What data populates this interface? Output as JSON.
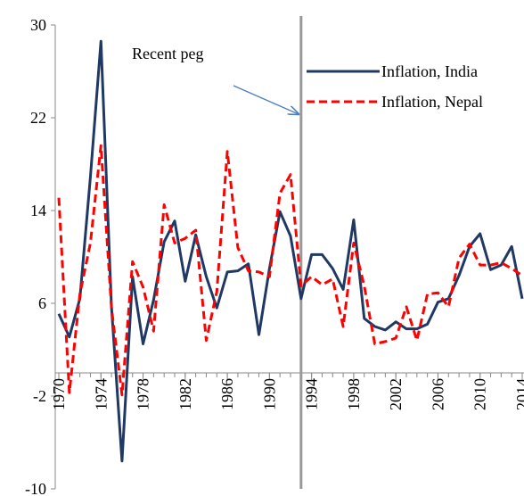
{
  "chart_data": {
    "type": "line",
    "annotation": "Recent peg",
    "peg_year": 1993,
    "x": [
      1970,
      1971,
      1972,
      1973,
      1974,
      1975,
      1976,
      1977,
      1978,
      1979,
      1980,
      1981,
      1982,
      1983,
      1984,
      1985,
      1986,
      1987,
      1988,
      1989,
      1990,
      1991,
      1992,
      1993,
      1994,
      1995,
      1996,
      1997,
      1998,
      1999,
      2000,
      2001,
      2002,
      2003,
      2004,
      2005,
      2006,
      2007,
      2008,
      2009,
      2010,
      2011,
      2012,
      2013,
      2014
    ],
    "series": [
      {
        "name": "Inflation, India",
        "color": "#1f3864",
        "dashed": false,
        "values": [
          5.1,
          3.1,
          6.4,
          16.9,
          28.6,
          5.7,
          -7.6,
          8.3,
          2.5,
          6.3,
          11.3,
          13.1,
          7.9,
          11.9,
          8.3,
          5.6,
          8.7,
          8.8,
          9.4,
          3.3,
          9.0,
          13.9,
          11.8,
          6.4,
          10.2,
          10.2,
          9.0,
          7.2,
          13.2,
          4.7,
          4.0,
          3.7,
          4.4,
          3.8,
          3.8,
          4.2,
          6.1,
          6.4,
          8.4,
          10.9,
          12.0,
          8.9,
          9.3,
          10.9,
          6.4
        ]
      },
      {
        "name": "Inflation, Nepal",
        "color": "#ff0000",
        "dashed": true,
        "values": [
          15.1,
          -1.7,
          6.8,
          11.2,
          19.6,
          5.6,
          -1.9,
          9.6,
          7.4,
          3.6,
          14.5,
          11.2,
          11.6,
          12.3,
          2.8,
          7.0,
          19.1,
          10.8,
          8.8,
          8.7,
          8.3,
          15.5,
          17.1,
          7.5,
          8.3,
          7.6,
          8.1,
          4.0,
          11.2,
          7.5,
          2.5,
          2.7,
          3.0,
          5.7,
          2.8,
          6.8,
          6.9,
          5.7,
          9.9,
          11.1,
          9.3,
          9.3,
          9.5,
          9.0,
          8.4
        ]
      }
    ],
    "xlim": [
      1970,
      2014
    ],
    "xticks": [
      1970,
      1974,
      1978,
      1982,
      1986,
      1990,
      1994,
      1998,
      2002,
      2006,
      2010,
      2014
    ],
    "ylim": [
      -10,
      30
    ],
    "yticks": [
      30,
      22,
      14,
      6,
      -2,
      -10
    ],
    "grid": false
  }
}
